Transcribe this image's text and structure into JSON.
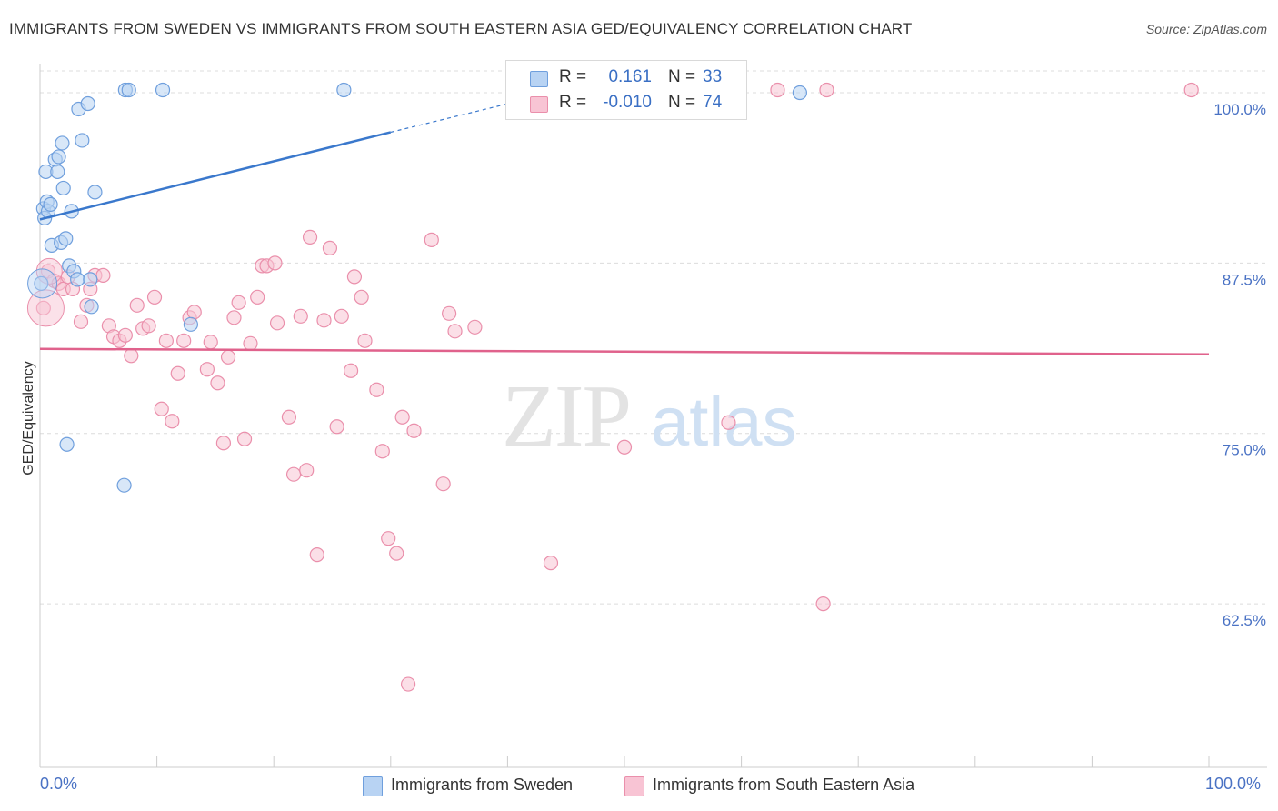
{
  "title": "IMMIGRANTS FROM SWEDEN VS IMMIGRANTS FROM SOUTH EASTERN ASIA GED/EQUIVALENCY CORRELATION CHART",
  "source": "Source: ZipAtlas.com",
  "watermark": {
    "zip": "ZIP",
    "atlas": "atlas"
  },
  "legend": {
    "sweden": {
      "r_label": "R =",
      "r_value": "0.161",
      "n_label": "N =",
      "n_value": "33"
    },
    "sea": {
      "r_label": "R =",
      "r_value": "-0.010",
      "n_label": "N =",
      "n_value": "74"
    }
  },
  "bottom_legend": {
    "sweden": "Immigrants from Sweden",
    "sea": "Immigrants from South Eastern Asia"
  },
  "x_axis": {
    "left_label": "0.0%",
    "right_label": "100.0%"
  },
  "colors": {
    "sweden_fill": "#b8d3f3",
    "sweden_stroke": "#6f9fdd",
    "sweden_line": "#3a78cc",
    "sea_fill": "#f8c4d4",
    "sea_stroke": "#ea8fab",
    "sea_line": "#e0628c",
    "tick_label": "#4a72c4",
    "grid": "#dcdcdc"
  },
  "chart_data": {
    "type": "scatter",
    "title": "IMMIGRANTS FROM SWEDEN VS IMMIGRANTS FROM SOUTH EASTERN ASIA GED/EQUIVALENCY CORRELATION CHART",
    "xlabel": "",
    "ylabel": "GED/Equivalency",
    "xlim": [
      0,
      100
    ],
    "ylim": [
      50.5,
      102.0
    ],
    "y_ticks": [
      62.5,
      75.0,
      87.5,
      100.0
    ],
    "y_tick_labels": [
      "62.5%",
      "75.0%",
      "87.5%",
      "100.0%"
    ],
    "grid": true,
    "legend_position": "top-center",
    "series": [
      {
        "name": "Immigrants from Sweden",
        "r": 0.161,
        "n": 33,
        "trend": {
          "x0": 0.0,
          "y0": 90.7,
          "x1": 30.0,
          "y1": 97.1,
          "dashed_to_x": 42.0,
          "dashed_to_y": 99.6
        },
        "points": [
          [
            0.1,
            86.0
          ],
          [
            0.3,
            91.5
          ],
          [
            0.4,
            90.8
          ],
          [
            0.5,
            94.2
          ],
          [
            0.6,
            92.0
          ],
          [
            0.7,
            91.3
          ],
          [
            0.9,
            91.8
          ],
          [
            1.0,
            88.8
          ],
          [
            1.3,
            95.1
          ],
          [
            1.5,
            94.2
          ],
          [
            1.6,
            95.3
          ],
          [
            1.8,
            89.0
          ],
          [
            1.9,
            96.3
          ],
          [
            2.0,
            93.0
          ],
          [
            2.2,
            89.3
          ],
          [
            2.3,
            74.2
          ],
          [
            2.5,
            87.3
          ],
          [
            2.7,
            91.3
          ],
          [
            2.9,
            86.9
          ],
          [
            3.2,
            86.3
          ],
          [
            3.3,
            98.8
          ],
          [
            3.6,
            96.5
          ],
          [
            4.1,
            99.2
          ],
          [
            4.3,
            86.3
          ],
          [
            4.4,
            84.3
          ],
          [
            4.7,
            92.7
          ],
          [
            7.2,
            71.2
          ],
          [
            7.3,
            100.2
          ],
          [
            7.6,
            100.2
          ],
          [
            10.5,
            100.2
          ],
          [
            12.9,
            83.0
          ],
          [
            26.0,
            100.2
          ],
          [
            65.0,
            100.0
          ]
        ]
      },
      {
        "name": "Immigrants from South Eastern Asia",
        "r": -0.01,
        "n": 74,
        "trend": {
          "x0": 0.0,
          "y0": 81.2,
          "x1": 100.0,
          "y1": 80.8
        },
        "points": [
          [
            0.3,
            84.2
          ],
          [
            0.7,
            86.9
          ],
          [
            1.2,
            86.2
          ],
          [
            1.6,
            86.0
          ],
          [
            2.0,
            85.6
          ],
          [
            2.4,
            86.5
          ],
          [
            2.8,
            85.6
          ],
          [
            3.5,
            83.2
          ],
          [
            4.0,
            84.4
          ],
          [
            4.3,
            85.6
          ],
          [
            4.7,
            86.6
          ],
          [
            5.4,
            86.6
          ],
          [
            5.9,
            82.9
          ],
          [
            6.3,
            82.1
          ],
          [
            6.8,
            81.8
          ],
          [
            7.3,
            82.2
          ],
          [
            7.8,
            80.7
          ],
          [
            8.3,
            84.4
          ],
          [
            8.8,
            82.7
          ],
          [
            9.3,
            82.9
          ],
          [
            9.8,
            85.0
          ],
          [
            10.4,
            76.8
          ],
          [
            10.8,
            81.8
          ],
          [
            11.3,
            75.9
          ],
          [
            11.8,
            79.4
          ],
          [
            12.3,
            81.8
          ],
          [
            12.8,
            83.5
          ],
          [
            13.2,
            83.9
          ],
          [
            14.3,
            79.7
          ],
          [
            14.6,
            81.7
          ],
          [
            15.2,
            78.7
          ],
          [
            15.7,
            74.3
          ],
          [
            16.1,
            80.6
          ],
          [
            16.6,
            83.5
          ],
          [
            17.0,
            84.6
          ],
          [
            17.5,
            74.6
          ],
          [
            18.0,
            81.6
          ],
          [
            18.6,
            85.0
          ],
          [
            19.0,
            87.3
          ],
          [
            19.4,
            87.3
          ],
          [
            20.1,
            87.5
          ],
          [
            20.3,
            83.1
          ],
          [
            21.3,
            76.2
          ],
          [
            21.7,
            72.0
          ],
          [
            22.3,
            83.6
          ],
          [
            22.8,
            72.3
          ],
          [
            23.1,
            89.4
          ],
          [
            23.7,
            66.1
          ],
          [
            24.3,
            83.3
          ],
          [
            24.8,
            88.6
          ],
          [
            25.4,
            75.5
          ],
          [
            25.8,
            83.6
          ],
          [
            26.6,
            79.6
          ],
          [
            26.9,
            86.5
          ],
          [
            27.5,
            85.0
          ],
          [
            27.8,
            81.8
          ],
          [
            28.8,
            78.2
          ],
          [
            29.3,
            73.7
          ],
          [
            29.8,
            67.3
          ],
          [
            30.5,
            66.2
          ],
          [
            31.0,
            76.2
          ],
          [
            31.5,
            56.6
          ],
          [
            32.0,
            75.2
          ],
          [
            33.5,
            89.2
          ],
          [
            34.5,
            71.3
          ],
          [
            35.0,
            83.8
          ],
          [
            35.5,
            82.5
          ],
          [
            37.2,
            82.8
          ],
          [
            43.7,
            65.5
          ],
          [
            50.0,
            74.0
          ],
          [
            58.9,
            75.8
          ],
          [
            63.1,
            100.2
          ],
          [
            67.0,
            62.5
          ],
          [
            67.3,
            100.2
          ],
          [
            98.5,
            100.2
          ]
        ]
      }
    ]
  }
}
